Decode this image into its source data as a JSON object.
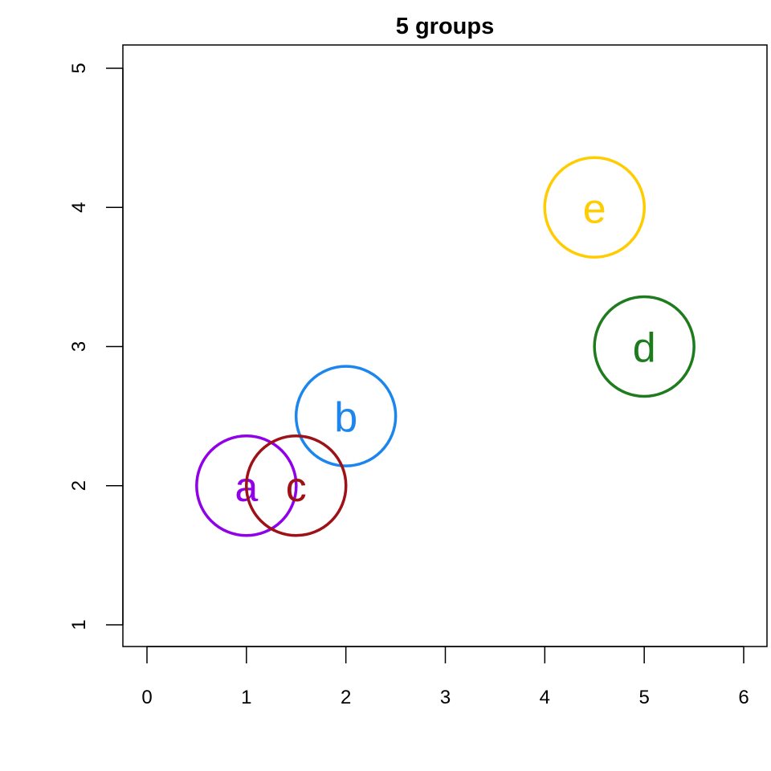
{
  "chart_data": {
    "type": "scatter",
    "title": "5 groups",
    "xlabel": "",
    "ylabel": "",
    "xlim": [
      0,
      6
    ],
    "ylim": [
      1,
      5
    ],
    "xticks": [
      "0",
      "1",
      "2",
      "3",
      "4",
      "5",
      "6"
    ],
    "yticks": [
      "1",
      "2",
      "3",
      "4",
      "5"
    ],
    "grid": false,
    "points": [
      {
        "label": "a",
        "x": 1,
        "y": 2,
        "color": "#9000E8"
      },
      {
        "label": "b",
        "x": 2,
        "y": 2.5,
        "color": "#1C86EE"
      },
      {
        "label": "c",
        "x": 1.5,
        "y": 2,
        "color": "#9E1117"
      },
      {
        "label": "d",
        "x": 5,
        "y": 3,
        "color": "#1E7B1E"
      },
      {
        "label": "e",
        "x": 4.5,
        "y": 4,
        "color": "#FFCC00"
      }
    ]
  }
}
